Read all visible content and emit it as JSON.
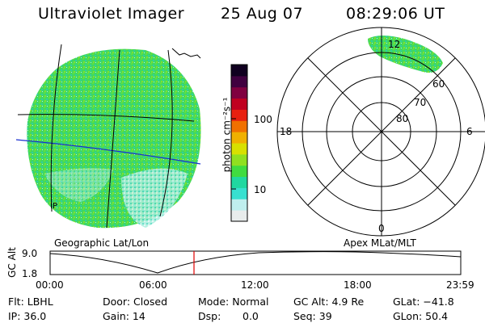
{
  "header": {
    "instrument": "Ultraviolet Imager",
    "date": "25 Aug 07",
    "time": "08:29:06 UT"
  },
  "colorbar": {
    "unit_label": "photon cm⁻²s⁻¹",
    "tick_100": "100",
    "tick_10": "10",
    "colors": [
      "#e8ecec",
      "#bfeeee",
      "#38e0d0",
      "#20d8a0",
      "#40dc40",
      "#90e020",
      "#d8e000",
      "#f0b000",
      "#f07000",
      "#e82010",
      "#c00020",
      "#800040",
      "#400040",
      "#100020"
    ]
  },
  "left_panel": {
    "caption": "Geographic Lat/Lon",
    "corner_label": "IP",
    "auroral_color": "#40d860"
  },
  "right_panel": {
    "caption": "Apex MLat/MLT",
    "mlt_top": "12",
    "mlt_left": "18",
    "mlt_right": "6",
    "mlt_bottom": "0",
    "lat_60": "60",
    "lat_70": "70",
    "lat_80": "80"
  },
  "altitude_plot": {
    "ylabel": "GC Alt",
    "y_top": "9.0",
    "y_bottom": "1.8",
    "x_ticks": [
      "00:00",
      "06:00",
      "12:00",
      "18:00",
      "23:59"
    ],
    "marker_color": "#e00000"
  },
  "status": {
    "filter": "Flt: LBHL",
    "ip": "IP: 36.0",
    "door": "Door: Closed",
    "gain": "Gain: 14",
    "mode": "Mode: Normal",
    "dsp": "Dsp:",
    "dsp_value": "0.0",
    "gc_alt": "GC Alt: 4.9 Re",
    "seq": "Seq: 39",
    "glat": "GLat: −41.8",
    "glon": "GLon:  50.4"
  }
}
